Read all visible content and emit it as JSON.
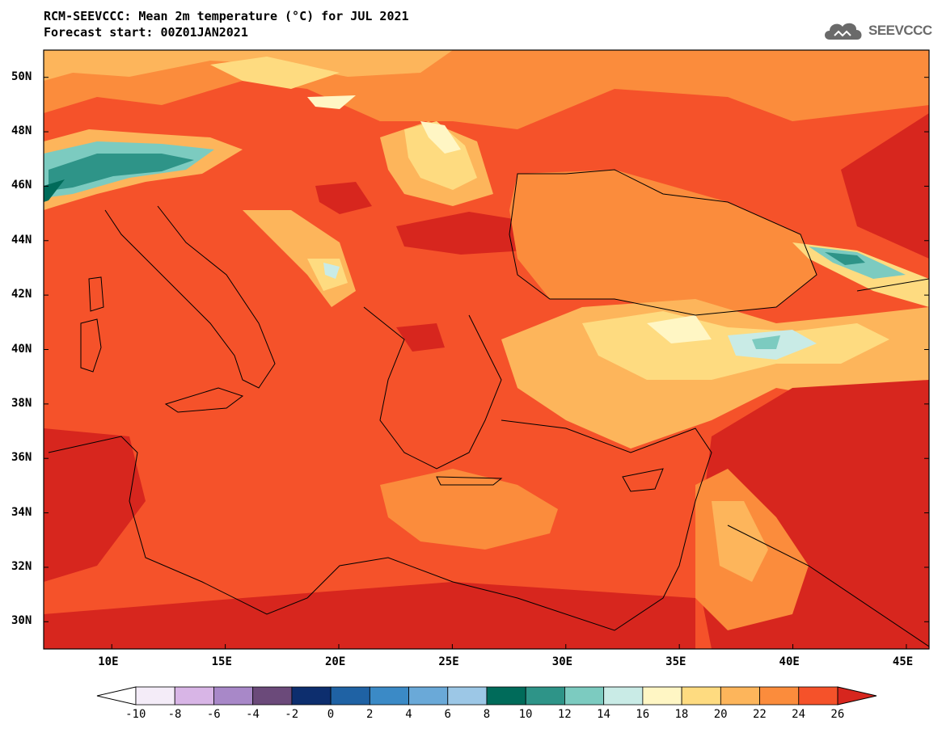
{
  "header": {
    "title_line1": "RCM-SEEVCCC: Mean 2m temperature (°C) for JUL 2021",
    "title_line2": "Forecast start: 00Z01JAN2021"
  },
  "logo": {
    "text": "SEEVCCC",
    "icon": "cloud-icon"
  },
  "map": {
    "lon_range": [
      7,
      46
    ],
    "lat_range": [
      29,
      51
    ],
    "x_ticks": [
      "10E",
      "15E",
      "20E",
      "25E",
      "30E",
      "35E",
      "40E",
      "45E"
    ],
    "x_tick_values": [
      10,
      15,
      20,
      25,
      30,
      35,
      40,
      45
    ],
    "y_ticks": [
      "50N",
      "48N",
      "46N",
      "44N",
      "42N",
      "40N",
      "38N",
      "36N",
      "34N",
      "32N",
      "30N"
    ],
    "y_tick_values": [
      50,
      48,
      46,
      44,
      42,
      40,
      38,
      36,
      34,
      32,
      30
    ]
  },
  "colorbar": {
    "labels": [
      "-10",
      "-8",
      "-6",
      "-4",
      "-2",
      "0",
      "2",
      "4",
      "6",
      "8",
      "10",
      "12",
      "14",
      "16",
      "18",
      "20",
      "22",
      "24",
      "26"
    ],
    "colors": [
      "#f4ecf8",
      "#d8b5e6",
      "#a888c8",
      "#6b4a7a",
      "#0d2e6e",
      "#1f62a4",
      "#3b8ac6",
      "#6aa9d8",
      "#9cc7e6",
      "#006b5a",
      "#2e9488",
      "#7ccbc0",
      "#c9ebe6",
      "#fff6c4",
      "#fedb80",
      "#fdb55b",
      "#fb8c3c",
      "#f5522a"
    ],
    "under_color": "#ffffff",
    "over_color": "#d7261e"
  }
}
